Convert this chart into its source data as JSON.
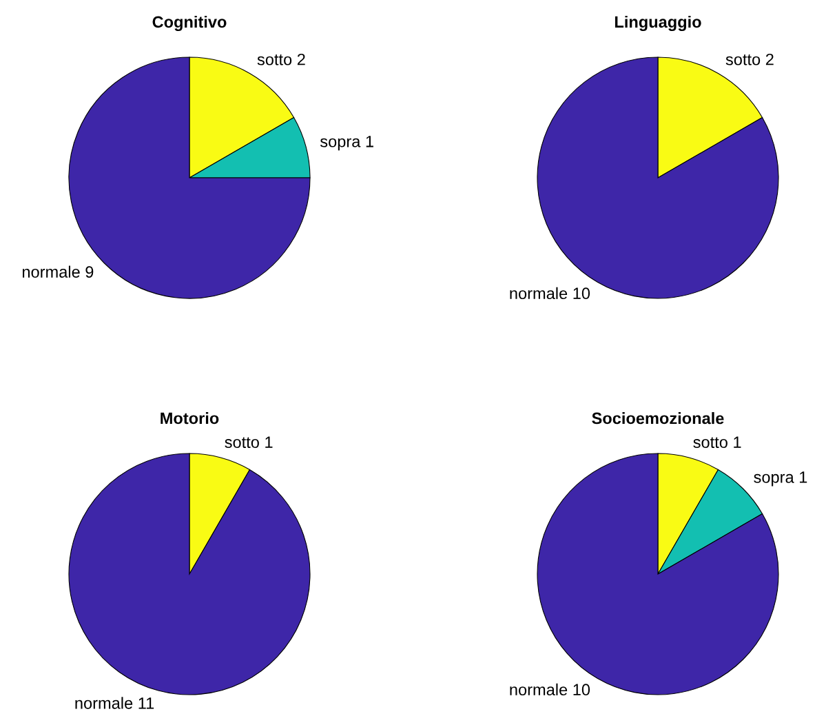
{
  "chart_data": [
    {
      "type": "pie",
      "title": "Cognitivo",
      "categories": [
        "sotto",
        "sopra",
        "normale"
      ],
      "values": [
        2,
        1,
        9
      ],
      "value_labels": [
        "2",
        "1",
        "9"
      ],
      "colors": [
        "#f9fb14",
        "#13bfb1",
        "#3e26a8"
      ]
    },
    {
      "type": "pie",
      "title": "Linguaggio",
      "categories": [
        "sotto",
        "normale"
      ],
      "values": [
        2,
        10
      ],
      "value_labels": [
        "2",
        "10"
      ],
      "colors": [
        "#f9fb14",
        "#3e26a8"
      ]
    },
    {
      "type": "pie",
      "title": "Motorio",
      "categories": [
        "sotto",
        "normale"
      ],
      "values": [
        1,
        11
      ],
      "value_labels": [
        "1",
        "11"
      ],
      "colors": [
        "#f9fb14",
        "#3e26a8"
      ]
    },
    {
      "type": "pie",
      "title": "Socioemozionale",
      "categories": [
        "sotto",
        "sopra",
        "normale"
      ],
      "values": [
        1,
        1,
        10
      ],
      "value_labels": [
        "1",
        "1",
        "10"
      ],
      "colors": [
        "#f9fb14",
        "#13bfb1",
        "#3e26a8"
      ]
    }
  ]
}
